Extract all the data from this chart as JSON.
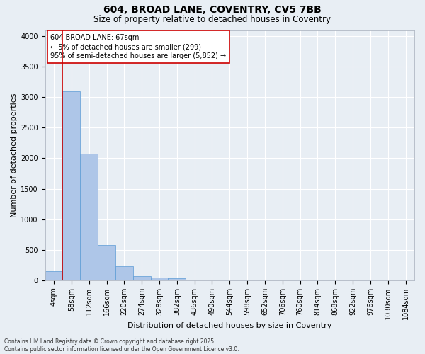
{
  "title1": "604, BROAD LANE, COVENTRY, CV5 7BB",
  "title2": "Size of property relative to detached houses in Coventry",
  "xlabel": "Distribution of detached houses by size in Coventry",
  "ylabel": "Number of detached properties",
  "bin_labels": [
    "4sqm",
    "58sqm",
    "112sqm",
    "166sqm",
    "220sqm",
    "274sqm",
    "328sqm",
    "382sqm",
    "436sqm",
    "490sqm",
    "544sqm",
    "598sqm",
    "652sqm",
    "706sqm",
    "760sqm",
    "814sqm",
    "868sqm",
    "922sqm",
    "976sqm",
    "1030sqm",
    "1084sqm"
  ],
  "bar_values": [
    150,
    3100,
    2080,
    575,
    230,
    70,
    45,
    35,
    0,
    0,
    0,
    0,
    0,
    0,
    0,
    0,
    0,
    0,
    0,
    0,
    0
  ],
  "bar_color": "#aec6e8",
  "bar_edge_color": "#5b9bd5",
  "vline_color": "#cc0000",
  "annotation_text": "604 BROAD LANE: 67sqm\n← 5% of detached houses are smaller (299)\n95% of semi-detached houses are larger (5,852) →",
  "annotation_box_color": "#ffffff",
  "annotation_box_edge_color": "#cc0000",
  "ylim": [
    0,
    4100
  ],
  "yticks": [
    0,
    500,
    1000,
    1500,
    2000,
    2500,
    3000,
    3500,
    4000
  ],
  "background_color": "#e8eef4",
  "grid_color": "#ffffff",
  "footer_text": "Contains HM Land Registry data © Crown copyright and database right 2025.\nContains public sector information licensed under the Open Government Licence v3.0.",
  "fig_width": 6.0,
  "fig_height": 5.0,
  "title1_fontsize": 10,
  "title2_fontsize": 8.5,
  "xlabel_fontsize": 8,
  "ylabel_fontsize": 8,
  "tick_fontsize": 7,
  "annot_fontsize": 7,
  "footer_fontsize": 5.5
}
